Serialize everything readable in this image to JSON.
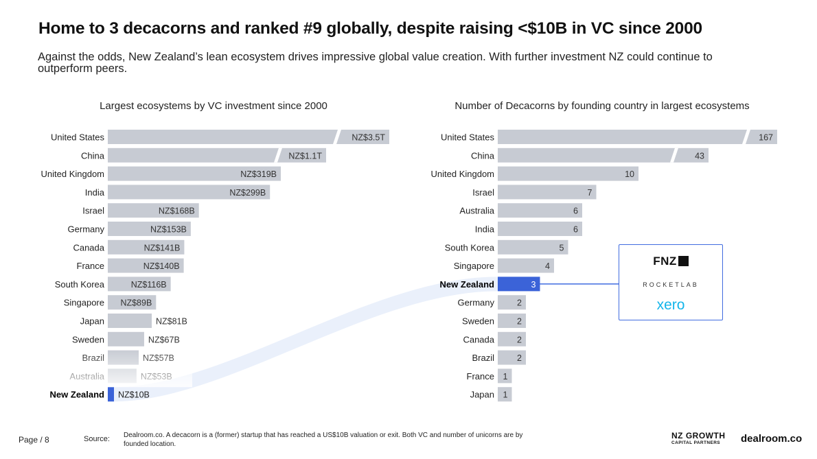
{
  "title": "Home to 3 decacorns and ranked #9 globally, despite raising <$10B in VC since 2000",
  "subtitle": "Against the odds, New Zealand’s lean ecosystem drives impressive global value creation. With further investment NZ could continue to outperform peers.",
  "colors": {
    "bar": "#c7cbd3",
    "highlight": "#3b63d8",
    "flow": "#eaf0fb",
    "box_border": "#3f6be0"
  },
  "chart_data": [
    {
      "type": "bar",
      "orientation": "horizontal",
      "title": "Largest ecosystems by VC investment since 2000",
      "unit": "NZ$ billions",
      "categories": [
        "United States",
        "China",
        "United Kingdom",
        "India",
        "Israel",
        "Germany",
        "Canada",
        "France",
        "South Korea",
        "Singapore",
        "Japan",
        "Sweden",
        "Brazil",
        "Australia",
        "New Zealand"
      ],
      "values": [
        3500,
        1100,
        319,
        299,
        168,
        153,
        141,
        140,
        116,
        89,
        81,
        67,
        57,
        53,
        10
      ],
      "labels": [
        "NZ$3.5T",
        "NZ$1.1T",
        "NZ$319B",
        "NZ$299B",
        "NZ$168B",
        "NZ$153B",
        "NZ$141B",
        "NZ$140B",
        "NZ$116B",
        "NZ$89B",
        "NZ$81B",
        "NZ$67B",
        "NZ$57B",
        "NZ$53B",
        "NZ$10B"
      ],
      "axis_break": [
        "United States",
        "China"
      ],
      "highlight": "New Zealand"
    },
    {
      "type": "bar",
      "orientation": "horizontal",
      "title": "Number of Decacorns by founding country in largest ecosystems",
      "categories": [
        "United States",
        "China",
        "United Kingdom",
        "Israel",
        "Australia",
        "India",
        "South Korea",
        "Singapore",
        "New Zealand",
        "Germany",
        "Sweden",
        "Canada",
        "Brazil",
        "France",
        "Japan"
      ],
      "values": [
        167,
        43,
        10,
        7,
        6,
        6,
        5,
        4,
        3,
        2,
        2,
        2,
        2,
        1,
        1
      ],
      "labels": [
        "167",
        "43",
        "10",
        "7",
        "6",
        "6",
        "5",
        "4",
        "3",
        "2",
        "2",
        "2",
        "2",
        "1",
        "1"
      ],
      "axis_break": [
        "United States",
        "China"
      ],
      "highlight": "New Zealand"
    }
  ],
  "callout": {
    "fnz": "FNZ",
    "rocketlab": "ROCKETLAB",
    "xero": "xero"
  },
  "footer": {
    "page": "Page / 8",
    "source_label": "Source:",
    "source_text": "Dealroom.co. A decacorn is a (former) startup that has reached a US$10B valuation or exit. Both VC and number of unicorns are by founded location.",
    "nzg_line1": "NZ GROWTH",
    "nzg_line2": "CAPITAL PARTNERS",
    "dealroom": "dealroom.co"
  }
}
